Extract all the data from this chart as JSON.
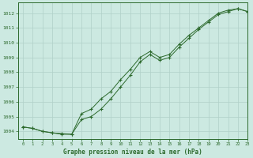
{
  "title": "Graphe pression niveau de la mer (hPa)",
  "background_color": "#cce9e1",
  "grid_color": "#b0d0c8",
  "line_color": "#2d6a2d",
  "xlim": [
    -0.5,
    23
  ],
  "ylim": [
    1003.5,
    1012.7
  ],
  "xticks": [
    0,
    1,
    2,
    3,
    4,
    5,
    6,
    7,
    8,
    9,
    10,
    11,
    12,
    13,
    14,
    15,
    16,
    17,
    18,
    19,
    20,
    21,
    22,
    23
  ],
  "yticks": [
    1004,
    1005,
    1006,
    1007,
    1008,
    1009,
    1010,
    1011,
    1012
  ],
  "line1_x": [
    0,
    1,
    2,
    3,
    4,
    5,
    6,
    7,
    8,
    9,
    10,
    11,
    12,
    13,
    14,
    15,
    16,
    17,
    18,
    19,
    20,
    21,
    22,
    23
  ],
  "line1_y": [
    1004.3,
    1004.2,
    1004.0,
    1003.9,
    1003.8,
    1003.8,
    1005.2,
    1005.5,
    1006.2,
    1006.7,
    1007.5,
    1008.2,
    1009.0,
    1009.4,
    1009.0,
    1009.2,
    1009.9,
    1010.5,
    1011.0,
    1011.5,
    1012.0,
    1012.2,
    1012.3,
    1012.1
  ],
  "line2_x": [
    0,
    1,
    2,
    3,
    4,
    5,
    6,
    7,
    8,
    9,
    10,
    11,
    12,
    13,
    14,
    15,
    16,
    17,
    18,
    19,
    20,
    21,
    22,
    23
  ],
  "line2_y": [
    1004.3,
    1004.2,
    1004.0,
    1003.9,
    1003.85,
    1003.8,
    1004.8,
    1005.0,
    1005.5,
    1006.2,
    1007.0,
    1007.8,
    1008.7,
    1009.2,
    1008.8,
    1009.0,
    1009.7,
    1010.3,
    1010.9,
    1011.4,
    1011.9,
    1012.1,
    1012.3,
    1012.1
  ]
}
